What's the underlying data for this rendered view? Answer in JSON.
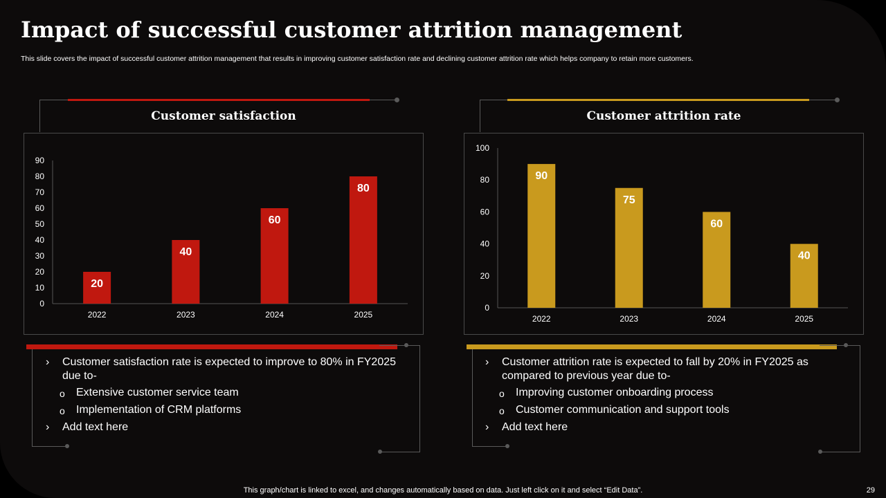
{
  "title": "Impact of successful customer attrition management",
  "subtitle": "This slide covers the impact of successful customer attrition management that results in improving customer satisfaction rate and declining customer attrition rate which helps company to retain more customers.",
  "colors": {
    "red": "#c0180f",
    "gold": "#c99a1e",
    "background": "#0d0b0b"
  },
  "left_panel": {
    "title": "Customer satisfaction",
    "bullets": [
      {
        "level": 1,
        "text": "Customer satisfaction rate is expected to improve to 80% in FY2025 due to-"
      },
      {
        "level": 2,
        "text": "Extensive customer service team"
      },
      {
        "level": 2,
        "text": "Implementation  of CRM platforms"
      },
      {
        "level": 1,
        "text": "Add text here"
      }
    ]
  },
  "right_panel": {
    "title": "Customer attrition rate",
    "bullets": [
      {
        "level": 1,
        "text": "Customer attrition rate is expected to fall by 20% in FY2025 as compared to previous year due to-"
      },
      {
        "level": 2,
        "text": "Improving customer onboarding process"
      },
      {
        "level": 2,
        "text": "Customer communication and support tools"
      },
      {
        "level": 1,
        "text": "Add text here"
      }
    ]
  },
  "chart_data": [
    {
      "type": "bar",
      "title": "Customer satisfaction",
      "categories": [
        "2022",
        "2023",
        "2024",
        "2025"
      ],
      "values": [
        20,
        40,
        60,
        80
      ],
      "yticks": [
        0,
        10,
        20,
        30,
        40,
        50,
        60,
        70,
        80,
        90
      ],
      "ylim": [
        0,
        90
      ],
      "color": "#c0180f"
    },
    {
      "type": "bar",
      "title": "Customer attrition rate",
      "categories": [
        "2022",
        "2023",
        "2024",
        "2025"
      ],
      "values": [
        90,
        75,
        60,
        40
      ],
      "yticks": [
        0,
        20,
        40,
        60,
        80,
        100
      ],
      "ylim": [
        0,
        100
      ],
      "color": "#c99a1e"
    }
  ],
  "footer": "This graph/chart is linked to excel,  and changes automatically based on data. Just left click on it and select “Edit Data”.",
  "page_number": "29",
  "bullet_markers": {
    "level1": "›",
    "level2": "o"
  }
}
